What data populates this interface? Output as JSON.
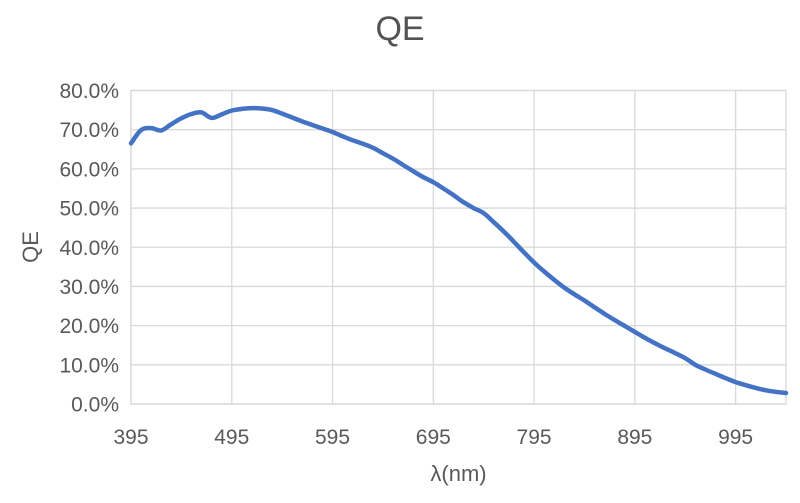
{
  "chart_data": {
    "type": "line",
    "title": "QE",
    "xlabel": "λ(nm)",
    "ylabel": "QE",
    "xlim": [
      395,
      1045
    ],
    "ylim": [
      0,
      80
    ],
    "grid": true,
    "legend": "none",
    "x_tick_values": [
      395,
      495,
      595,
      695,
      795,
      895,
      995
    ],
    "x_tick_labels": [
      "395",
      "495",
      "595",
      "695",
      "795",
      "895",
      "995"
    ],
    "y_tick_values": [
      0,
      10,
      20,
      30,
      40,
      50,
      60,
      70,
      80
    ],
    "y_tick_labels": [
      "0.0%",
      "10.0%",
      "20.0%",
      "30.0%",
      "40.0%",
      "50.0%",
      "60.0%",
      "70.0%",
      "80.0%"
    ],
    "series": [
      {
        "name": "QE",
        "x": [
          395,
          405,
          415,
          425,
          435,
          445,
          455,
          465,
          475,
          485,
          495,
          505,
          515,
          525,
          535,
          545,
          555,
          565,
          575,
          585,
          595,
          605,
          615,
          625,
          635,
          645,
          655,
          665,
          675,
          685,
          695,
          705,
          715,
          725,
          735,
          745,
          755,
          765,
          775,
          785,
          795,
          805,
          815,
          825,
          835,
          845,
          855,
          865,
          875,
          885,
          895,
          905,
          915,
          925,
          935,
          945,
          955,
          965,
          975,
          985,
          995,
          1005,
          1015,
          1025,
          1035,
          1045
        ],
        "values": [
          66.5,
          69.9,
          70.4,
          69.8,
          71.4,
          72.9,
          74.0,
          74.4,
          73.0,
          73.9,
          74.9,
          75.3,
          75.5,
          75.4,
          75.0,
          74.1,
          73.1,
          72.1,
          71.2,
          70.3,
          69.4,
          68.3,
          67.3,
          66.4,
          65.4,
          64.0,
          62.6,
          61.0,
          59.4,
          57.9,
          56.6,
          55.0,
          53.3,
          51.5,
          50.0,
          48.7,
          46.4,
          44.0,
          41.4,
          38.7,
          36.1,
          33.8,
          31.7,
          29.7,
          28.0,
          26.4,
          24.7,
          23.0,
          21.4,
          19.9,
          18.4,
          16.9,
          15.5,
          14.2,
          13.0,
          11.7,
          10.0,
          8.8,
          7.7,
          6.6,
          5.6,
          4.8,
          4.1,
          3.5,
          3.1,
          2.8
        ]
      }
    ],
    "colors": {
      "line": "#4472C4",
      "gridline": "#D9D9D9",
      "axis_line": "#BFBFBF",
      "text": "#595959",
      "background": "#FFFFFF"
    }
  }
}
